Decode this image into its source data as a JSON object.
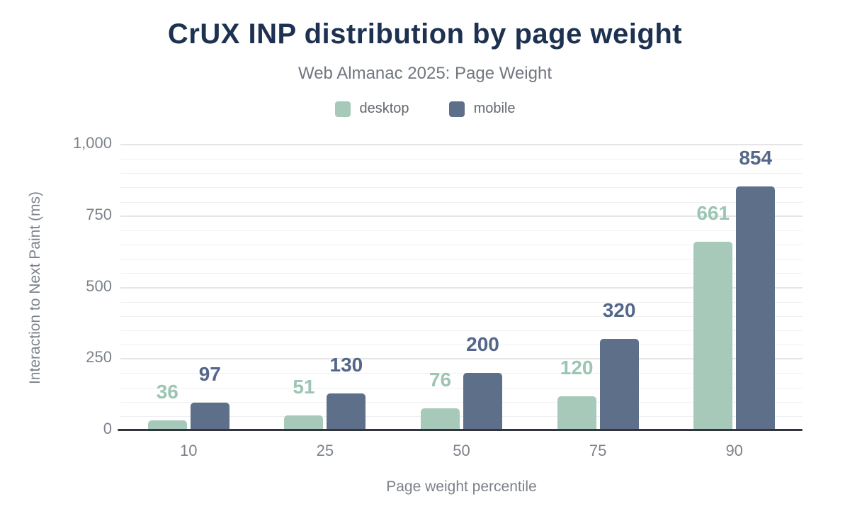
{
  "title": "CrUX INP distribution by page weight",
  "subtitle": "Web Almanac 2025: Page Weight",
  "legend": {
    "items": [
      {
        "label": "desktop",
        "color": "#a7c9ba"
      },
      {
        "label": "mobile",
        "color": "#5e7089"
      }
    ]
  },
  "colors": {
    "title": "#1d3150",
    "subtitle": "#71767f",
    "legend_text": "#62676f",
    "axis_text": "#7d828a",
    "axis_line": "#32363c",
    "grid_major": "#e5e5e5",
    "grid_minor": "#efefef",
    "desktop_bar": "#a7c9ba",
    "desktop_label": "#9dc5b3",
    "mobile_bar": "#5e7089",
    "mobile_label": "#54678a"
  },
  "chart_data": {
    "type": "bar",
    "title": "CrUX INP distribution by page weight",
    "subtitle": "Web Almanac 2025: Page Weight",
    "categories": [
      "10",
      "25",
      "50",
      "75",
      "90"
    ],
    "series": [
      {
        "name": "desktop",
        "color": "#a7c9ba",
        "label_color": "#9dc5b3",
        "values": [
          36,
          51,
          76,
          120,
          661
        ]
      },
      {
        "name": "mobile",
        "color": "#5e7089",
        "label_color": "#54678a",
        "values": [
          97,
          130,
          200,
          320,
          854
        ]
      }
    ],
    "xlabel": "Page weight percentile",
    "ylabel": "Interaction to Next Paint (ms)",
    "ylim": [
      0,
      1000
    ],
    "yticks": [
      {
        "value": 0,
        "label": "0"
      },
      {
        "value": 250,
        "label": "250"
      },
      {
        "value": 500,
        "label": "500"
      },
      {
        "value": 750,
        "label": "750"
      },
      {
        "value": 1000,
        "label": "1,000"
      }
    ],
    "minor_grid_step": 50,
    "grid": true,
    "legend_position": "top",
    "data_labels": true
  }
}
